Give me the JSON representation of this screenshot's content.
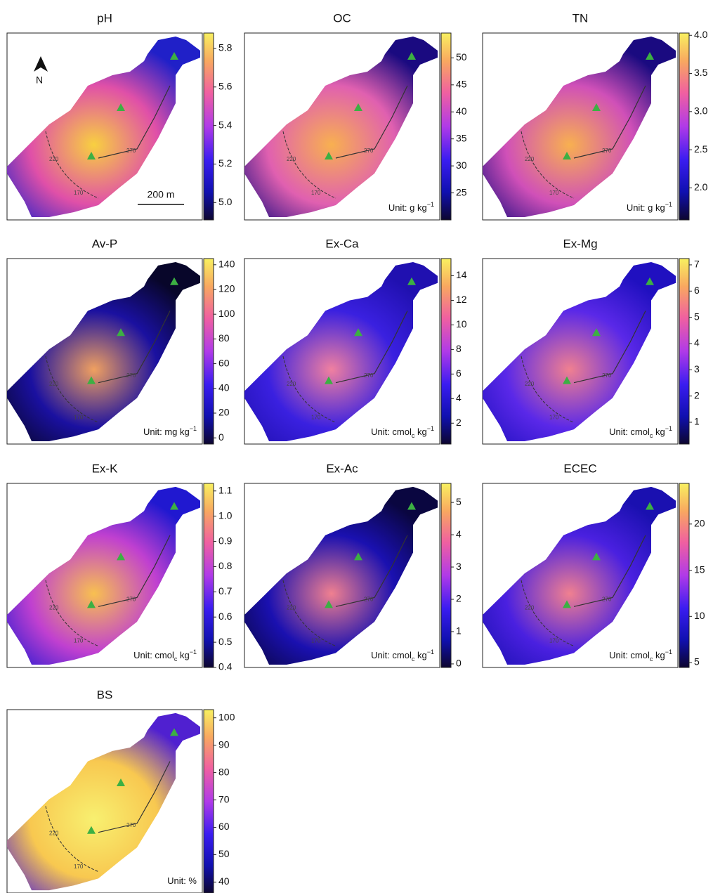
{
  "north_label": "N",
  "scale_label": "200 m",
  "contour_labels": [
    "270",
    "220",
    "170"
  ],
  "panels": [
    {
      "title": "pH",
      "lim": [
        4.91,
        5.88
      ],
      "ticks": [
        {
          "value": 5,
          "label": "5.0"
        },
        5.2,
        5.4,
        5.6,
        5.8
      ]
    },
    {
      "title": "OC",
      "unit": {
        "main": "Unit: g kg",
        "sup": "−1"
      },
      "lim": [
        20,
        54.6
      ],
      "ticks": [
        25,
        30,
        35,
        40,
        45,
        50
      ]
    },
    {
      "title": "TN",
      "unit": {
        "main": "Unit: g kg",
        "sup": "−1"
      },
      "lim": [
        1.58,
        4.03
      ],
      "ticks": [
        {
          "value": 2,
          "label": "2.0"
        },
        2.5,
        {
          "value": 3,
          "label": "3.0"
        },
        3.5,
        {
          "value": 4,
          "label": "4.0"
        }
      ]
    },
    {
      "title": "Av-P",
      "unit": {
        "main": "Unit: mg kg",
        "sup": "−1"
      },
      "lim": [
        -5,
        145
      ],
      "ticks": [
        0,
        20,
        40,
        60,
        80,
        100,
        120,
        140
      ]
    },
    {
      "title": "Ex-Ca",
      "unit": {
        "main": "Unit: cmol",
        "sub": "c",
        "after": " kg",
        "sup": "−1"
      },
      "lim": [
        0.3,
        15.4
      ],
      "ticks": [
        2,
        4,
        6,
        8,
        10,
        12,
        14
      ]
    },
    {
      "title": "Ex-Mg",
      "unit": {
        "main": "Unit: cmol",
        "sub": "c",
        "after": " kg",
        "sup": "−1"
      },
      "lim": [
        0.17,
        7.24
      ],
      "ticks": [
        1,
        2,
        3,
        4,
        5,
        6,
        7
      ]
    },
    {
      "title": "Ex-K",
      "unit": {
        "main": "Unit: cmol",
        "sub": "c",
        "after": " kg",
        "sup": "−1"
      },
      "lim": [
        0.4,
        1.13
      ],
      "ticks": [
        0.4,
        0.5,
        0.6,
        0.7,
        0.8,
        0.9,
        {
          "value": 1,
          "label": "1.0"
        },
        1.1
      ]
    },
    {
      "title": "Ex-Ac",
      "unit": {
        "main": "Unit: cmol",
        "sub": "c",
        "after": " kg",
        "sup": "−1"
      },
      "lim": [
        -0.11,
        5.59
      ],
      "ticks": [
        0,
        1,
        2,
        3,
        4,
        5
      ]
    },
    {
      "title": "ECEC",
      "unit": {
        "main": "Unit: cmol",
        "sub": "c",
        "after": " kg",
        "sup": "−1"
      },
      "lim": [
        4.47,
        24.4
      ],
      "ticks": [
        5,
        10,
        15,
        20
      ]
    },
    {
      "title": "BS",
      "unit": {
        "main": "Unit: %"
      },
      "lim": [
        36,
        103
      ],
      "ticks": [
        40,
        50,
        60,
        70,
        80,
        90,
        100
      ]
    }
  ]
}
